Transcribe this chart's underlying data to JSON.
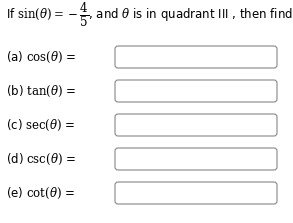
{
  "bg_color": "#ffffff",
  "text_color": "#000000",
  "box_edge_color": "#888888",
  "box_fill": "#ffffff",
  "title_line1": "If $\\sin(\\theta) = -\\dfrac{4}{5}$, and $\\theta$ is in quadrant III , then find",
  "parts": [
    "(a) $\\cos(\\theta)$ =",
    "(b) $\\tan(\\theta)$ =",
    "(c) $\\sec(\\theta)$ =",
    "(d) $\\csc(\\theta)$ =",
    "(e) $\\cot(\\theta)$ ="
  ],
  "title_fontsize": 8.5,
  "parts_fontsize": 8.5,
  "fig_width": 2.93,
  "fig_height": 2.23,
  "dpi": 100
}
